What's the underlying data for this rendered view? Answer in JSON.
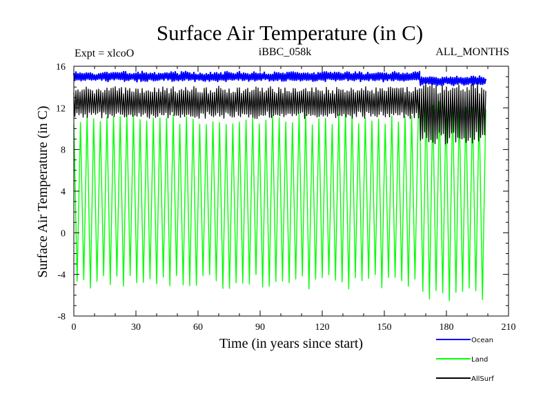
{
  "chart_data": {
    "type": "line",
    "title": "Surface Air Temperature (in C)",
    "subtitle_left": "Expt = xlcoO",
    "subtitle_center": "iBBC_058k",
    "subtitle_right": "ALL_MONTHS",
    "xlabel": "Time (in years since start)",
    "ylabel": "Surface Air Temperature (in C)",
    "xlim": [
      0,
      210
    ],
    "ylim": [
      -8,
      16
    ],
    "x_ticks": [
      0,
      30,
      60,
      90,
      120,
      150,
      180,
      210
    ],
    "y_ticks": [
      -8,
      -4,
      0,
      4,
      8,
      12,
      16
    ],
    "x_minor_step": 10,
    "y_minor_step": 1,
    "x_end": 199,
    "legend_position": "bottom-right, below plot",
    "series": [
      {
        "name": "Ocean",
        "color": "#0000ff",
        "segments": [
          {
            "from": 0,
            "to": 167,
            "low": 14.6,
            "high": 15.4
          },
          {
            "from": 167,
            "to": 199,
            "low": 14.2,
            "high": 15.0
          }
        ]
      },
      {
        "name": "Land",
        "color": "#00ff00",
        "segments": [
          {
            "from": 0,
            "to": 167,
            "low": -5.4,
            "high": 11.5
          },
          {
            "from": 167,
            "to": 199,
            "low": -6.6,
            "high": 13.0
          }
        ]
      },
      {
        "name": "AllSurf",
        "color": "#000000",
        "segments": [
          {
            "from": 0,
            "to": 167,
            "low": 11.0,
            "high": 14.0
          },
          {
            "from": 167,
            "to": 199,
            "low": 8.5,
            "high": 14.5
          }
        ]
      }
    ]
  }
}
